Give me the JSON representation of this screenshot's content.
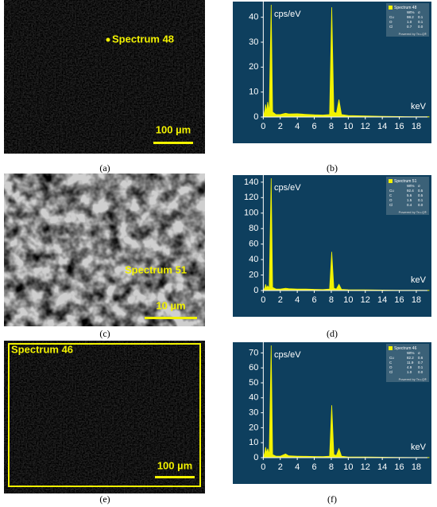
{
  "images": [
    {
      "spectrum": "Spectrum 48",
      "scale": "100 µm"
    },
    {
      "spectrum": "Spectrum 51",
      "scale": "10 µm"
    },
    {
      "spectrum": "Spectrum 46",
      "scale": "100 µm"
    }
  ],
  "captions": [
    "(a)",
    "(b)",
    "(c)",
    "(d)",
    "(e)",
    "(f)"
  ],
  "chart_data": [
    {
      "type": "area",
      "ylabel": "cps/eV",
      "xlabel": "keV",
      "color": "#f2f200",
      "xlim": [
        -0.5,
        19.5
      ],
      "ylim": [
        0,
        45
      ],
      "xticks": [
        0,
        2,
        4,
        6,
        8,
        10,
        12,
        14,
        16,
        18
      ],
      "yticks": [
        0,
        10,
        20,
        30,
        40
      ],
      "x": [
        0,
        0.2,
        0.28,
        0.4,
        0.52,
        0.7,
        0.93,
        1.1,
        1.5,
        2,
        2.62,
        3,
        4,
        5,
        6,
        7,
        7.8,
        8.05,
        8.3,
        8.6,
        8.9,
        9.2,
        10,
        12,
        14,
        16,
        18,
        19.5
      ],
      "values": [
        0,
        3,
        5,
        2,
        6,
        2,
        45,
        2,
        1,
        1,
        1.5,
        1.2,
        1.3,
        1.1,
        0.9,
        0.8,
        1,
        44,
        2,
        1.5,
        7,
        1,
        0.6,
        0.4,
        0.3,
        0.2,
        0.1,
        0.1
      ],
      "legend": {
        "title": "Spectrum 48",
        "headers": [
          "Wt%",
          "σ"
        ],
        "rows": [
          [
            "Cu",
            "98.2",
            "0.1"
          ],
          [
            "O",
            "1.0",
            "0.1"
          ],
          [
            "Cl",
            "0.7",
            "0.0"
          ]
        ],
        "footer": "Powered by Tru-Q®"
      }
    },
    {
      "type": "area",
      "ylabel": "cps/eV",
      "xlabel": "keV",
      "color": "#f2f200",
      "xlim": [
        -0.5,
        19.5
      ],
      "ylim": [
        0,
        145
      ],
      "xticks": [
        0,
        2,
        4,
        6,
        8,
        10,
        12,
        14,
        16,
        18
      ],
      "yticks": [
        0,
        20,
        40,
        60,
        80,
        100,
        120,
        140
      ],
      "x": [
        0,
        0.2,
        0.28,
        0.4,
        0.52,
        0.7,
        0.93,
        1.1,
        1.5,
        2,
        2.62,
        3,
        4,
        5,
        6,
        7,
        7.8,
        8.05,
        8.3,
        8.6,
        8.9,
        9.2,
        10,
        12,
        14,
        16,
        18,
        19.5
      ],
      "values": [
        0,
        4,
        8,
        3,
        6,
        3,
        145,
        4,
        2,
        2,
        3,
        2.5,
        2,
        1.8,
        1.5,
        1.2,
        2,
        50,
        3,
        2,
        8,
        1.5,
        1,
        0.8,
        0.6,
        0.4,
        0.3,
        0.2
      ],
      "legend": {
        "title": "Spectrum 51",
        "headers": [
          "Wt%",
          "σ"
        ],
        "rows": [
          [
            "Cu",
            "92.4",
            "0.5"
          ],
          [
            "C",
            "5.6",
            "0.5"
          ],
          [
            "O",
            "1.5",
            "0.1"
          ],
          [
            "Cl",
            "0.4",
            "0.0"
          ]
        ],
        "footer": "Powered by Tru-Q®"
      }
    },
    {
      "type": "area",
      "ylabel": "cps/eV",
      "xlabel": "keV",
      "color": "#f2f200",
      "xlim": [
        -0.5,
        19.5
      ],
      "ylim": [
        0,
        75
      ],
      "xticks": [
        0,
        2,
        4,
        6,
        8,
        10,
        12,
        14,
        16,
        18
      ],
      "yticks": [
        0,
        10,
        20,
        30,
        40,
        50,
        60,
        70
      ],
      "x": [
        0,
        0.2,
        0.28,
        0.4,
        0.52,
        0.7,
        0.93,
        1.1,
        1.5,
        2,
        2.62,
        3,
        4,
        5,
        6,
        7,
        7.8,
        8.05,
        8.3,
        8.6,
        8.9,
        9.2,
        10,
        12,
        14,
        16,
        18,
        19.5
      ],
      "values": [
        0,
        4,
        7,
        3,
        6,
        2,
        75,
        2,
        1,
        1,
        2.5,
        1.2,
        1,
        0.9,
        0.8,
        0.7,
        1,
        35,
        2,
        1.5,
        6,
        1,
        0.5,
        0.4,
        0.3,
        0.2,
        0.1,
        0.1
      ],
      "legend": {
        "title": "Spectrum 46",
        "headers": [
          "Wt%",
          "σ"
        ],
        "rows": [
          [
            "Cu",
            "82.2",
            "0.6"
          ],
          [
            "C",
            "11.9",
            "0.7"
          ],
          [
            "O",
            "4.9",
            "0.1"
          ],
          [
            "Cl",
            "1.0",
            "0.0"
          ]
        ],
        "footer": "Powered by Tru-Q®"
      }
    }
  ]
}
